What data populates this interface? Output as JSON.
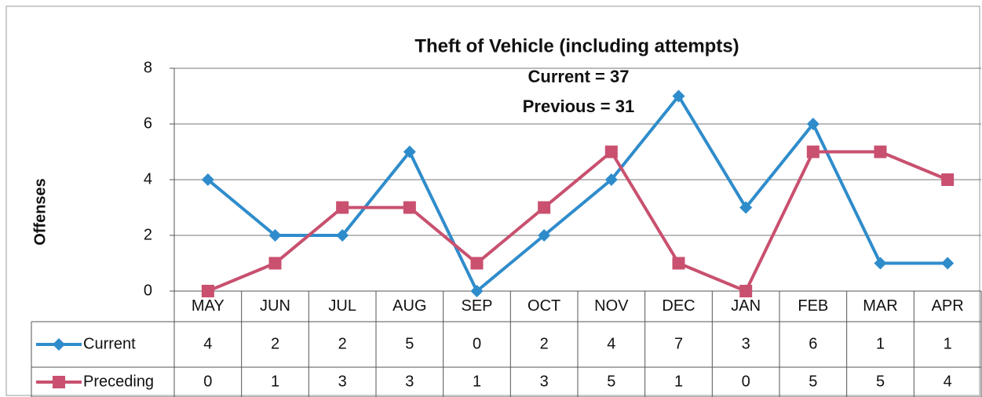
{
  "chart_data": {
    "type": "line",
    "title": "Theft of Vehicle (including attempts)",
    "annotations": [
      "Current = 37",
      "Previous = 31"
    ],
    "y_label": "Offenses",
    "categories": [
      "MAY",
      "JUN",
      "JUL",
      "AUG",
      "SEP",
      "OCT",
      "NOV",
      "DEC",
      "JAN",
      "FEB",
      "MAR",
      "APR"
    ],
    "series": [
      {
        "name": "Current",
        "color": "#2f8ccb",
        "marker": "diamond",
        "values": [
          4,
          2,
          2,
          5,
          0,
          2,
          4,
          7,
          3,
          6,
          1,
          1
        ]
      },
      {
        "name": "Preceding",
        "color": "#c9506f",
        "marker": "square",
        "values": [
          0,
          1,
          3,
          3,
          1,
          3,
          5,
          1,
          0,
          5,
          5,
          4
        ]
      }
    ],
    "ylim": [
      0,
      8
    ],
    "yticks": [
      0,
      2,
      4,
      6,
      8
    ],
    "grid": true,
    "data_table": true
  }
}
